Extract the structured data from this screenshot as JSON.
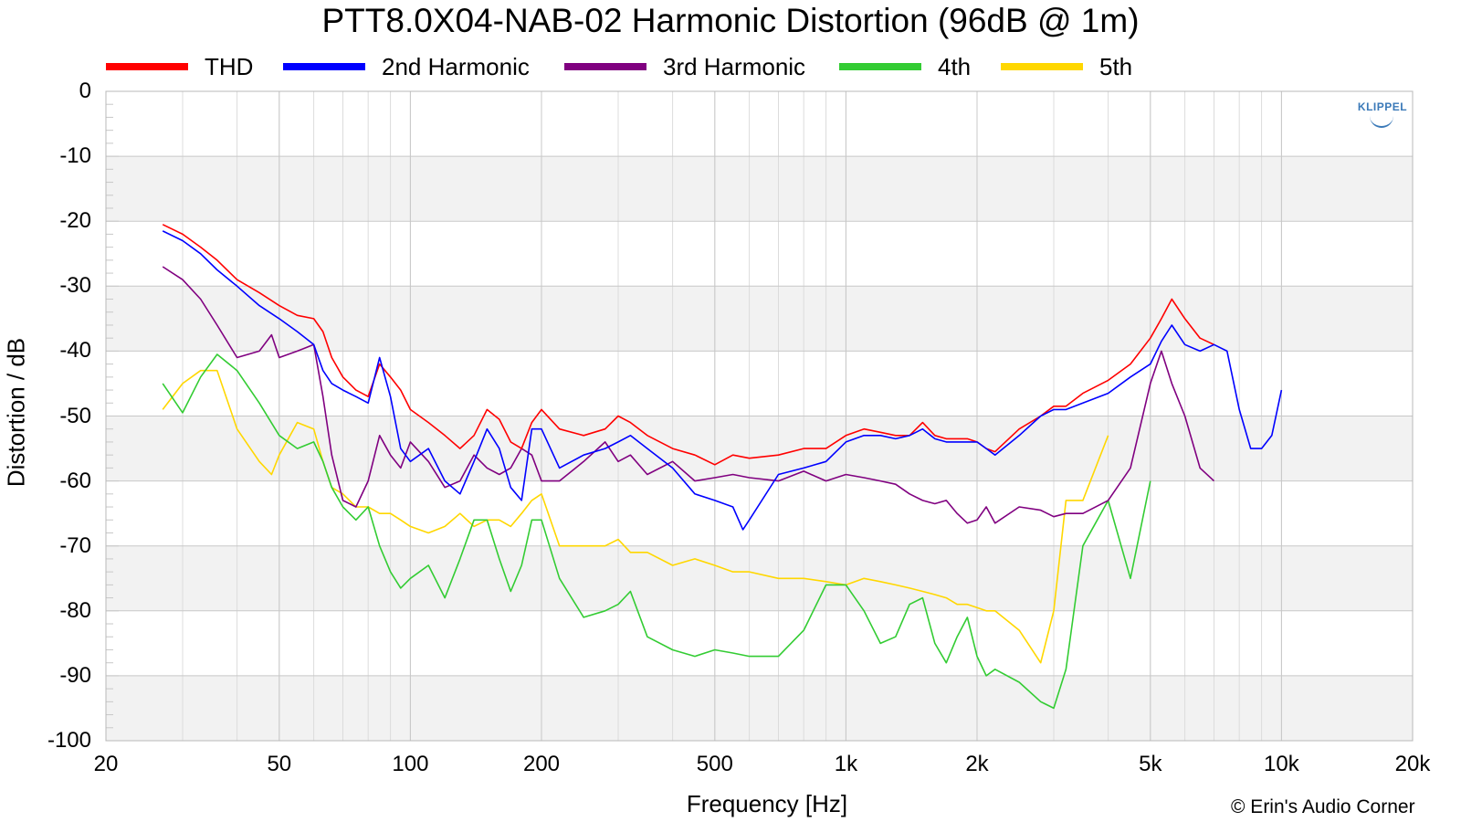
{
  "chart_data": {
    "type": "line",
    "title": "PTT8.0X04-NAB-02 Harmonic Distortion (96dB @ 1m)",
    "xlabel": "Frequency [Hz]",
    "ylabel": "Distortion / dB",
    "xscale": "log",
    "xlim": [
      20,
      20000
    ],
    "ylim": [
      -100,
      0
    ],
    "x_ticks": [
      20,
      50,
      100,
      200,
      500,
      1000,
      2000,
      5000,
      10000,
      20000
    ],
    "x_tick_labels": [
      "20",
      "50",
      "100",
      "200",
      "500",
      "1k",
      "2k",
      "5k",
      "10k",
      "20k"
    ],
    "y_ticks": [
      0,
      -10,
      -20,
      -30,
      -40,
      -50,
      -60,
      -70,
      -80,
      -90,
      -100
    ],
    "y_tick_labels": [
      "0",
      "-10",
      "-20",
      "-30",
      "-40",
      "-50",
      "-60",
      "-70",
      "-80",
      "-90",
      "-100"
    ],
    "grid": true,
    "legend_position": "top",
    "series": [
      {
        "name": "THD",
        "color": "#ff0000",
        "x": [
          27,
          30,
          33,
          36,
          40,
          45,
          50,
          55,
          60,
          63,
          66,
          70,
          75,
          80,
          85,
          90,
          95,
          100,
          110,
          120,
          130,
          140,
          150,
          160,
          170,
          180,
          190,
          200,
          220,
          250,
          280,
          300,
          320,
          350,
          400,
          450,
          500,
          550,
          600,
          700,
          800,
          900,
          1000,
          1100,
          1200,
          1300,
          1400,
          1500,
          1600,
          1700,
          1800,
          1900,
          2000,
          2100,
          2200,
          2500,
          2800,
          3000,
          3200,
          3500,
          4000,
          4500,
          5000,
          5300,
          5600,
          6000,
          6500,
          7000
        ],
        "y": [
          -20.5,
          -22,
          -24,
          -26,
          -29,
          -31,
          -33,
          -34.5,
          -35,
          -37,
          -41,
          -44,
          -46,
          -47,
          -42,
          -44,
          -46,
          -49,
          -51,
          -53,
          -55,
          -53,
          -49,
          -50.5,
          -54,
          -55,
          -51,
          -49,
          -52,
          -53,
          -52,
          -50,
          -51,
          -53,
          -55,
          -56,
          -57.5,
          -56,
          -56.5,
          -56,
          -55,
          -55,
          -53,
          -52,
          -52.5,
          -53,
          -53,
          -51,
          -53,
          -53.5,
          -53.5,
          -53.5,
          -54,
          -55,
          -55.5,
          -52,
          -50,
          -48.5,
          -48.5,
          -46.5,
          -44.5,
          -42,
          -38,
          -35,
          -32,
          -35,
          -38,
          -39
        ]
      },
      {
        "name": "2nd Harmonic",
        "color": "#0000ff",
        "x": [
          27,
          30,
          33,
          36,
          40,
          45,
          50,
          55,
          60,
          63,
          66,
          70,
          75,
          80,
          85,
          90,
          95,
          100,
          110,
          120,
          130,
          140,
          150,
          160,
          170,
          180,
          190,
          200,
          220,
          250,
          280,
          300,
          320,
          350,
          400,
          450,
          500,
          550,
          580,
          600,
          700,
          800,
          900,
          1000,
          1100,
          1200,
          1300,
          1400,
          1500,
          1600,
          1700,
          1800,
          1900,
          2000,
          2100,
          2200,
          2500,
          2800,
          3000,
          3200,
          3500,
          4000,
          4500,
          5000,
          5300,
          5600,
          6000,
          6500,
          7000,
          7500,
          8000,
          8500,
          9000,
          9500,
          10000
        ],
        "y": [
          -21.5,
          -23,
          -25,
          -27.5,
          -30,
          -33,
          -35,
          -37,
          -39,
          -43,
          -45,
          -46,
          -47,
          -48,
          -41,
          -47,
          -55,
          -57,
          -55,
          -60,
          -62,
          -57,
          -52,
          -55,
          -61,
          -63,
          -52,
          -52,
          -58,
          -56,
          -55,
          -54,
          -53,
          -55,
          -58,
          -62,
          -63,
          -64,
          -67.5,
          -66,
          -59,
          -58,
          -57,
          -54,
          -53,
          -53,
          -53.5,
          -53,
          -52,
          -53.5,
          -54,
          -54,
          -54,
          -54,
          -55,
          -56,
          -53,
          -50,
          -49,
          -49,
          -48,
          -46.5,
          -44,
          -42,
          -38.5,
          -36,
          -39,
          -40,
          -39,
          -40,
          -49,
          -55,
          -55,
          -53,
          -46
        ]
      },
      {
        "name": "3rd Harmonic",
        "color": "#800080",
        "x": [
          27,
          30,
          33,
          36,
          40,
          45,
          48,
          50,
          55,
          60,
          63,
          66,
          70,
          75,
          80,
          85,
          90,
          95,
          100,
          110,
          120,
          130,
          140,
          150,
          160,
          170,
          180,
          190,
          200,
          220,
          250,
          280,
          300,
          320,
          350,
          400,
          450,
          500,
          550,
          600,
          700,
          800,
          900,
          1000,
          1100,
          1200,
          1300,
          1400,
          1500,
          1600,
          1700,
          1800,
          1900,
          2000,
          2100,
          2200,
          2500,
          2800,
          3000,
          3200,
          3500,
          4000,
          4500,
          5000,
          5300,
          5600,
          6000,
          6500,
          7000
        ],
        "y": [
          -27,
          -29,
          -32,
          -36,
          -41,
          -40,
          -37.5,
          -41,
          -40,
          -39,
          -47,
          -56,
          -63,
          -64,
          -60,
          -53,
          -56,
          -58,
          -54,
          -57,
          -61,
          -60,
          -56,
          -58,
          -59,
          -58,
          -55,
          -56,
          -60,
          -60,
          -57,
          -54,
          -57,
          -56,
          -59,
          -57,
          -60,
          -59.5,
          -59,
          -59.5,
          -60,
          -58.5,
          -60,
          -59,
          -59.5,
          -60,
          -60.5,
          -62,
          -63,
          -63.5,
          -63,
          -65,
          -66.5,
          -66,
          -64,
          -66.5,
          -64,
          -64.5,
          -65.5,
          -65,
          -65,
          -63,
          -58,
          -45,
          -40,
          -45,
          -50,
          -58,
          -60
        ]
      },
      {
        "name": "4th",
        "color": "#33cc33",
        "x": [
          27,
          30,
          33,
          36,
          40,
          45,
          50,
          55,
          60,
          63,
          66,
          70,
          75,
          80,
          85,
          90,
          95,
          100,
          110,
          120,
          130,
          140,
          150,
          160,
          170,
          180,
          190,
          200,
          220,
          250,
          280,
          300,
          320,
          350,
          400,
          450,
          500,
          550,
          600,
          700,
          800,
          900,
          1000,
          1100,
          1200,
          1300,
          1400,
          1500,
          1600,
          1700,
          1800,
          1900,
          2000,
          2100,
          2200,
          2500,
          2800,
          3000,
          3200,
          3500,
          4000,
          4500,
          5000
        ],
        "y": [
          -45,
          -49.5,
          -44,
          -40.5,
          -43,
          -48,
          -53,
          -55,
          -54,
          -57,
          -61,
          -64,
          -66,
          -64,
          -70,
          -74,
          -76.5,
          -75,
          -73,
          -78,
          -72,
          -66,
          -66,
          -72,
          -77,
          -73,
          -66,
          -66,
          -75,
          -81,
          -80,
          -79,
          -77,
          -84,
          -86,
          -87,
          -86,
          -86.5,
          -87,
          -87,
          -83,
          -76,
          -76,
          -80,
          -85,
          -84,
          -79,
          -78,
          -85,
          -88,
          -84,
          -81,
          -87,
          -90,
          -89,
          -91,
          -94,
          -95,
          -89,
          -70,
          -63,
          -75,
          -60
        ]
      },
      {
        "name": "5th",
        "color": "#ffd700",
        "x": [
          27,
          30,
          33,
          36,
          40,
          45,
          48,
          50,
          55,
          60,
          63,
          66,
          70,
          75,
          80,
          85,
          90,
          95,
          100,
          110,
          120,
          130,
          140,
          150,
          160,
          170,
          180,
          190,
          200,
          220,
          250,
          280,
          300,
          320,
          350,
          400,
          450,
          500,
          550,
          600,
          700,
          800,
          900,
          1000,
          1100,
          1200,
          1300,
          1400,
          1500,
          1600,
          1700,
          1800,
          1900,
          2000,
          2100,
          2200,
          2500,
          2800,
          3000,
          3200,
          3500,
          4000
        ],
        "y": [
          -49,
          -45,
          -43,
          -43,
          -52,
          -57,
          -59,
          -56,
          -51,
          -52,
          -57,
          -61,
          -62,
          -64,
          -64,
          -65,
          -65,
          -66,
          -67,
          -68,
          -67,
          -65,
          -67,
          -66,
          -66,
          -67,
          -65,
          -63,
          -62,
          -70,
          -70,
          -70,
          -69,
          -71,
          -71,
          -73,
          -72,
          -73,
          -74,
          -74,
          -75,
          -75,
          -75.5,
          -76,
          -75,
          -75.5,
          -76,
          -76.5,
          -77,
          -77.5,
          -78,
          -79,
          -79,
          -79.5,
          -80,
          -80,
          -83,
          -88,
          -80,
          -63,
          -63,
          -53
        ]
      }
    ]
  },
  "logo_text": "KLIPPEL",
  "credit": "© Erin's Audio Corner"
}
